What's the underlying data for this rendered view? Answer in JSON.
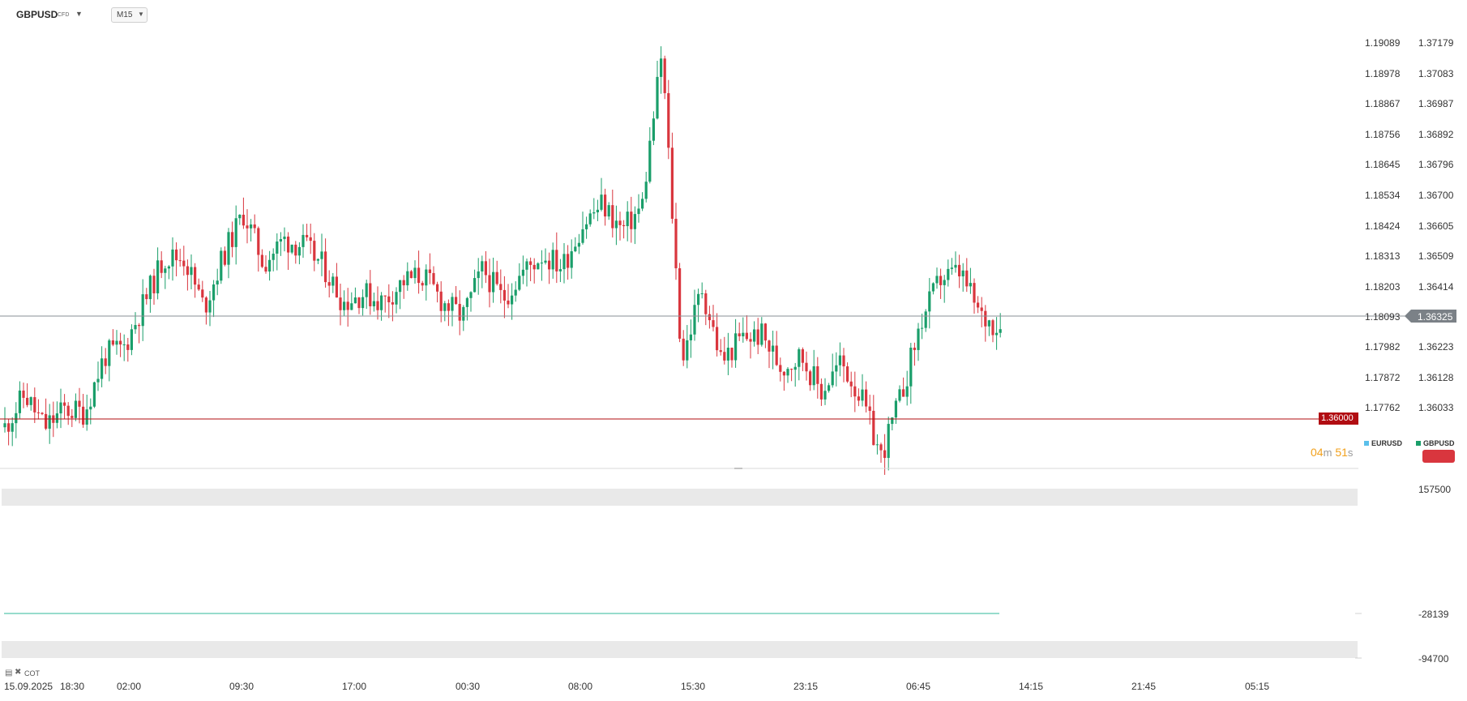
{
  "header": {
    "symbol": "GBPUSD",
    "symbol_type": "CFD",
    "timeframe": "M15"
  },
  "current_price": "1.36325",
  "level_line_price": "1.36000",
  "countdown": {
    "minutes": "04",
    "minutes_unit": "m",
    "seconds": "51",
    "seconds_unit": "s"
  },
  "legend": {
    "series_a": "EURUSD",
    "series_b": "GBPUSD"
  },
  "indicator": {
    "name": "COT"
  },
  "colors": {
    "up": "#1a9e6a",
    "down": "#d9363e",
    "level_line": "#b10d12",
    "price_line": "#8a8f94",
    "countdown": "#f2a11c",
    "indicator_line": "#2fb89a"
  },
  "chart_data": {
    "type": "candlestick",
    "symbol": "GBPUSD",
    "timeframe": "M15",
    "x_tick_labels": [
      "15.09.2025",
      "18:30",
      "02:00",
      "09:30",
      "17:00",
      "00:30",
      "08:00",
      "15:30",
      "23:15",
      "06:45",
      "14:15",
      "21:45",
      "05:15"
    ],
    "y_axis_eurusd_ticks": [
      "1.19089",
      "1.18978",
      "1.18867",
      "1.18756",
      "1.18645",
      "1.18534",
      "1.18424",
      "1.18313",
      "1.18203",
      "1.18093",
      "1.17982",
      "1.17872",
      "1.17762"
    ],
    "y_axis_gbpusd_ticks": [
      "1.37179",
      "1.37083",
      "1.36987",
      "1.36892",
      "1.36796",
      "1.36700",
      "1.36605",
      "1.36509",
      "1.36414",
      "1.36223",
      "1.36128",
      "1.36033"
    ],
    "y_range": [
      1.3585,
      1.3736
    ],
    "current_price": 1.36325,
    "level_line": 1.36,
    "close_path": [
      1.3598,
      1.3609,
      1.3598,
      1.3604,
      1.3603,
      1.3622,
      1.3625,
      1.364,
      1.3655,
      1.3655,
      1.3638,
      1.3656,
      1.367,
      1.3653,
      1.3661,
      1.3659,
      1.3652,
      1.364,
      1.3643,
      1.364,
      1.3647,
      1.3649,
      1.364,
      1.3635,
      1.3651,
      1.3641,
      1.365,
      1.3656,
      1.3652,
      1.3666,
      1.3673,
      1.3664,
      1.3672,
      1.3724,
      1.362,
      1.3645,
      1.362,
      1.3628,
      1.3629,
      1.3618,
      1.3622,
      1.361,
      1.362,
      1.3608,
      1.3588,
      1.3608,
      1.3633,
      1.3648,
      1.365,
      1.3635,
      1.3632
    ],
    "indicator_cot": {
      "name": "COT",
      "y_tick_labels": [
        "157500",
        "-28139",
        "-94700"
      ],
      "current_value": -28139
    }
  }
}
